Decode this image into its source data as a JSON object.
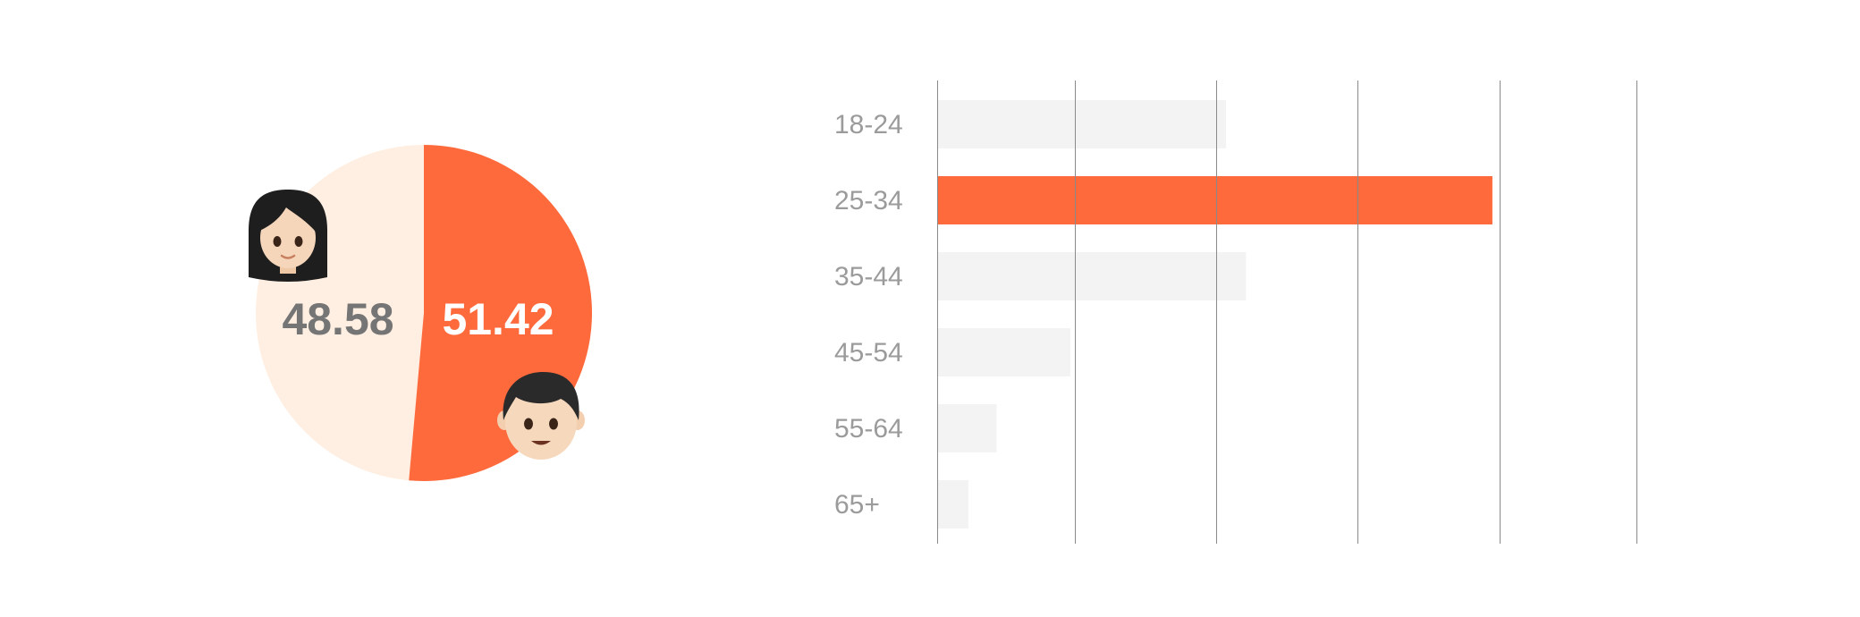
{
  "chart_data": [
    {
      "type": "pie",
      "slices": [
        {
          "key": "female",
          "value": 48.58,
          "label": "48.58",
          "color": "#ffefe2",
          "label_color": "#757575",
          "icon": "woman-icon"
        },
        {
          "key": "male",
          "value": 51.42,
          "label": "51.42",
          "color": "#ff6a3d",
          "label_color": "#ffffff",
          "icon": "boy-icon"
        }
      ]
    },
    {
      "type": "bar",
      "orientation": "horizontal",
      "categories": [
        "18-24",
        "25-34",
        "35-44",
        "45-54",
        "55-64",
        "65+"
      ],
      "values": [
        10.2,
        19.6,
        10.9,
        4.7,
        2.1,
        1.1
      ],
      "highlight_index": 1,
      "xlim": [
        0,
        25
      ],
      "grid_values": [
        0,
        4.85,
        9.85,
        14.85,
        19.85,
        24.7
      ],
      "grid": true,
      "colors": {
        "bar": "#f3f3f3",
        "highlight": "#ff6a3d",
        "grid": "#8a8a8a"
      }
    }
  ]
}
